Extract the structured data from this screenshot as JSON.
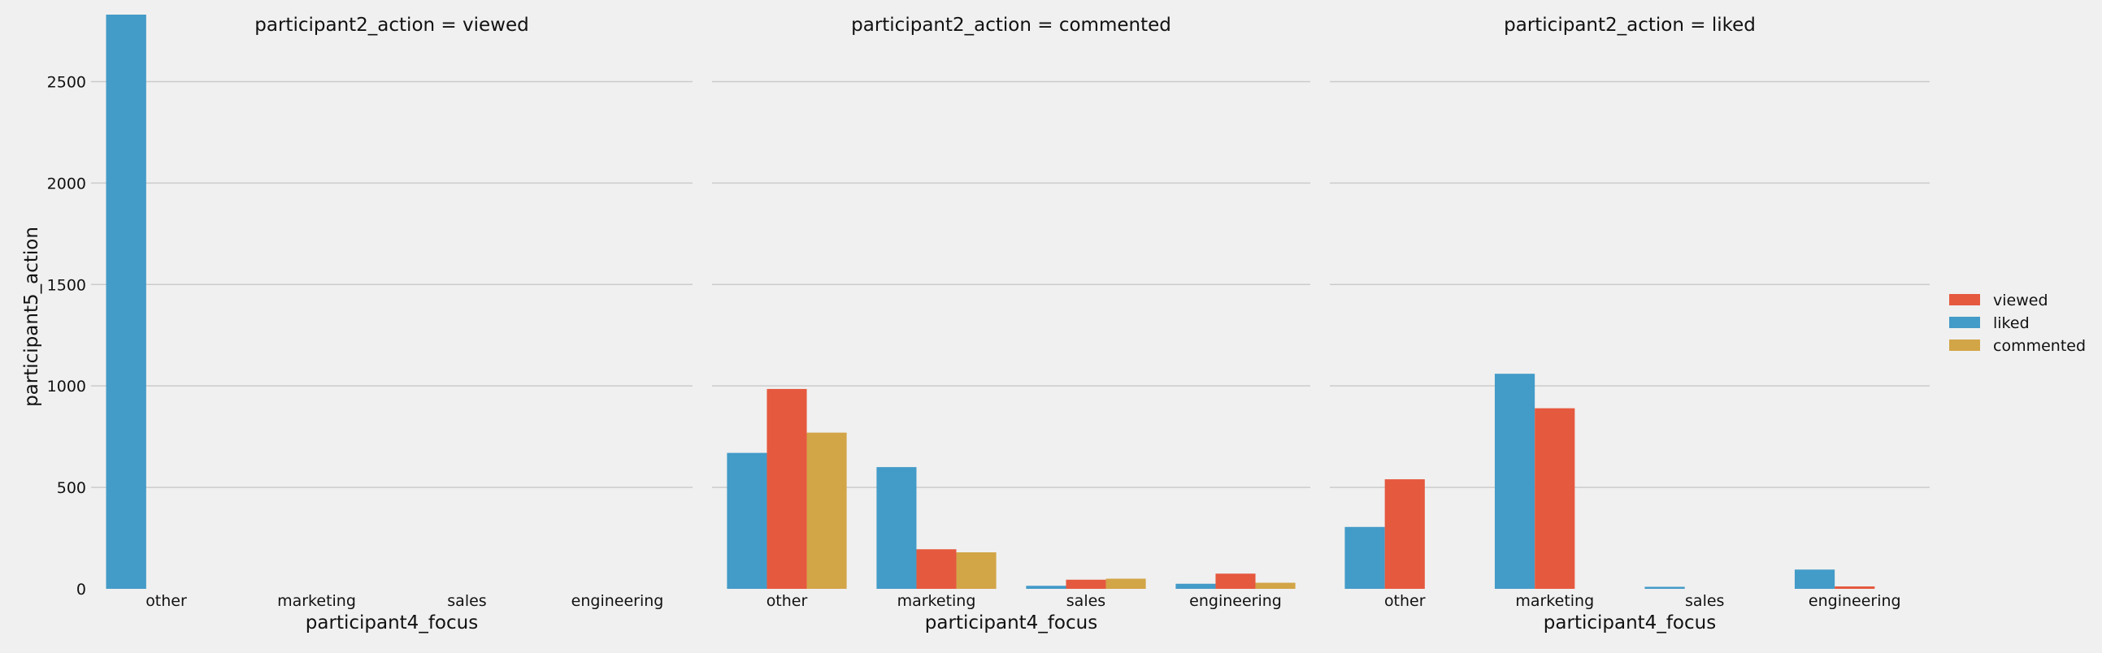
{
  "chart_data": {
    "type": "bar",
    "layout": "facet-grid",
    "y_axis_label": "participant5_action",
    "x_axis_label": "participant4_focus",
    "categories": [
      "other",
      "marketing",
      "sales",
      "engineering"
    ],
    "ylim": [
      0,
      2830
    ],
    "yticks": [
      0,
      500,
      1000,
      1500,
      2000,
      2500
    ],
    "grid": true,
    "legend": {
      "placement": "right",
      "entries": [
        {
          "name": "viewed",
          "color": "#e5593f"
        },
        {
          "name": "liked",
          "color": "#439bc8"
        },
        {
          "name": "commented",
          "color": "#d2a547"
        }
      ]
    },
    "hue_order": [
      "liked",
      "viewed",
      "commented"
    ],
    "colors": {
      "liked": "#439bc8",
      "viewed": "#e5593f",
      "commented": "#d2a547"
    },
    "facets": [
      {
        "title": "participant2_action = viewed",
        "series": [
          {
            "name": "liked",
            "values": [
              2830,
              0,
              0,
              0
            ]
          }
        ]
      },
      {
        "title": "participant2_action = commented",
        "series": [
          {
            "name": "liked",
            "values": [
              670,
              600,
              15,
              25
            ]
          },
          {
            "name": "viewed",
            "values": [
              985,
              195,
              45,
              75
            ]
          },
          {
            "name": "commented",
            "values": [
              770,
              180,
              50,
              30
            ]
          }
        ]
      },
      {
        "title": "participant2_action = liked",
        "series": [
          {
            "name": "liked",
            "values": [
              305,
              1060,
              10,
              95
            ]
          },
          {
            "name": "viewed",
            "values": [
              540,
              890,
              0,
              12
            ]
          }
        ]
      }
    ]
  }
}
